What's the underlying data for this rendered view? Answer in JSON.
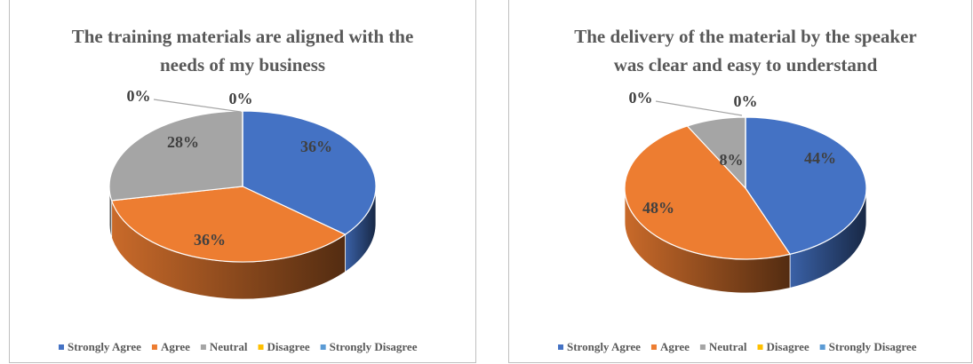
{
  "chart_data": [
    {
      "type": "pie",
      "title": [
        "The training materials are aligned with the",
        "needs of my business"
      ],
      "categories": [
        "Strongly Agree",
        "Agree",
        "Neutral",
        "Disagree",
        "Strongly Disagree"
      ],
      "values": [
        36,
        36,
        28,
        0,
        0
      ],
      "value_labels": [
        "36%",
        "36%",
        "28%",
        "0%",
        "0%"
      ],
      "colors": [
        "#4472c4",
        "#ed7d31",
        "#a5a5a5",
        "#ffc000",
        "#5b9bd5"
      ],
      "legend": "bottom"
    },
    {
      "type": "pie",
      "title": [
        "The delivery of the material by the speaker",
        "was clear and easy to understand"
      ],
      "categories": [
        "Strongly Agree",
        "Agree",
        "Neutral",
        "Disagree",
        "Strongly Disagree"
      ],
      "values": [
        44,
        48,
        8,
        0,
        0
      ],
      "value_labels": [
        "44%",
        "48%",
        "8%",
        "0%",
        "0%"
      ],
      "colors": [
        "#4472c4",
        "#ed7d31",
        "#a5a5a5",
        "#ffc000",
        "#5b9bd5"
      ],
      "legend": "bottom"
    }
  ]
}
